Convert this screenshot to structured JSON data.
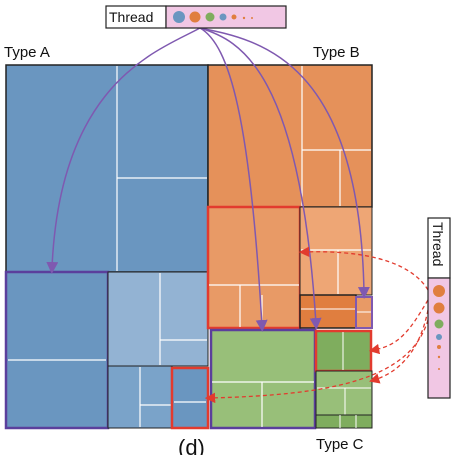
{
  "labels": {
    "type_a": "Type A",
    "type_b": "Type B",
    "type_c": "Type C",
    "thread_top": "Thread",
    "thread_right": "Thread",
    "caption": "(d)"
  },
  "colors": {
    "blue": "#6a96c0",
    "blue_light": "#93b3d3",
    "blue_mid": "#7aa3c9",
    "orange": "#e5915a",
    "orange_light": "#eea675",
    "orange_dark": "#e07e3f",
    "green": "#98bf79",
    "green_dark": "#7fad5e",
    "pink": "#f1c7e4",
    "purple": "#7f59b0",
    "red": "#e23b2e",
    "dot_blue": "#6a96c0",
    "dot_orange": "#e07e3f",
    "dot_green": "#7fad5e"
  },
  "icons": {
    "thread_legend_top": "thread-dots-icon",
    "thread_legend_right": "thread-dots-icon"
  }
}
